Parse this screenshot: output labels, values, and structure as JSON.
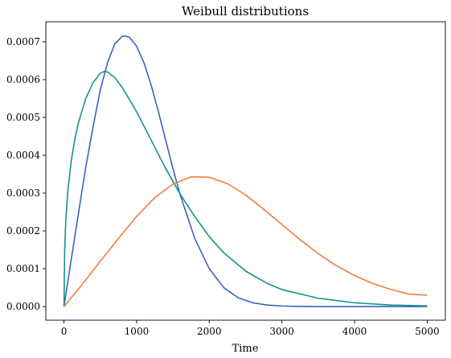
{
  "chart_data": {
    "type": "line",
    "title": "Weibull distributions",
    "xlabel": "Time",
    "ylabel": "",
    "xlim": [
      -250,
      5250
    ],
    "ylim": [
      -3.6e-05,
      0.000753
    ],
    "xticks": [
      0,
      1000,
      2000,
      3000,
      4000,
      5000
    ],
    "yticks": [
      0.0,
      0.0001,
      0.0002,
      0.0003,
      0.0004,
      0.0005,
      0.0006,
      0.0007
    ],
    "ytick_labels": [
      "0.0000",
      "0.0001",
      "0.0002",
      "0.0003",
      "0.0004",
      "0.0005",
      "0.0006",
      "0.0007"
    ],
    "grid": false,
    "legend": "none",
    "series": [
      {
        "color": "#3a62c3",
        "x": [
          0,
          100,
          200,
          300,
          400,
          500,
          600,
          700,
          800,
          850,
          900,
          1000,
          1100,
          1200,
          1300,
          1400,
          1500,
          1600,
          1800,
          2000,
          2200,
          2400,
          2600,
          2800,
          3000,
          3200,
          3500,
          4000,
          4500,
          5000
        ],
        "y": [
          0.0,
          0.000125,
          0.000248,
          0.000368,
          0.000475,
          0.000573,
          0.000645,
          0.000695,
          0.000714,
          0.000715,
          0.000712,
          0.000688,
          0.000645,
          0.000585,
          0.000515,
          0.00044,
          0.000365,
          0.000295,
          0.00018,
          0.0001,
          5e-05,
          2.3e-05,
          1e-05,
          4e-06,
          1.5e-06,
          5e-07,
          1e-07,
          0.0,
          0.0,
          0.0
        ]
      },
      {
        "color": "#14938a",
        "x": [
          0,
          10,
          25,
          50,
          100,
          150,
          200,
          300,
          400,
          500,
          560,
          600,
          700,
          800,
          1000,
          1200,
          1400,
          1600,
          1800,
          2000,
          2200,
          2500,
          2800,
          3000,
          3500,
          4000,
          4500,
          5000
        ],
        "y": [
          0.0,
          0.000155,
          0.000228,
          0.0003,
          0.000385,
          0.000443,
          0.000487,
          0.00055,
          0.000592,
          0.000617,
          0.000622,
          0.00062,
          0.000605,
          0.00058,
          0.000515,
          0.00044,
          0.000365,
          0.000297,
          0.000238,
          0.000185,
          0.000142,
          9.4e-05,
          6.1e-05,
          4.5e-05,
          2.2e-05,
          1e-05,
          4e-06,
          2e-06
        ]
      },
      {
        "color": "#f47b3e",
        "x": [
          0,
          250,
          500,
          750,
          1000,
          1250,
          1500,
          1750,
          2000,
          2250,
          2500,
          2750,
          3000,
          3250,
          3500,
          3750,
          4000,
          4250,
          4500,
          4750,
          5000
        ],
        "y": [
          0.0,
          5.8e-05,
          0.00012,
          0.00018,
          0.000238,
          0.000288,
          0.000324,
          0.000343,
          0.000342,
          0.000325,
          0.000295,
          0.000257,
          0.000217,
          0.000177,
          0.00014,
          0.000108,
          8.2e-05,
          6.1e-05,
          4.5e-05,
          3.3e-05,
          3e-05
        ]
      }
    ]
  }
}
